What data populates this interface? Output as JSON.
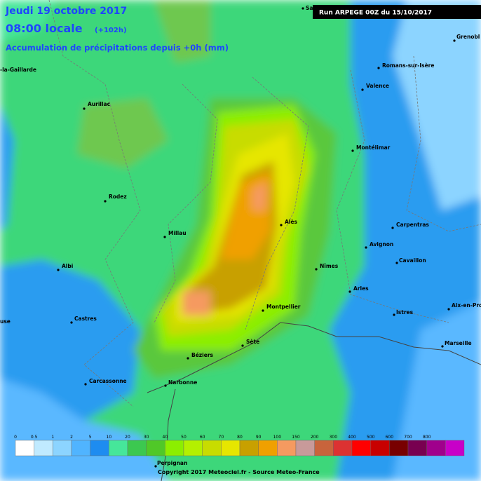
{
  "header": {
    "date": "Jeudi 19 octobre 2017",
    "time": "08:00 locale",
    "lead": "(+102h)",
    "subtitle": "Accumulation de précipitations depuis +0h (mm)",
    "run": "Run ARPEGE 00Z du 15/10/2017"
  },
  "cities": [
    "Sa",
    "Grenobl",
    "Romans-sur-Isère",
    "Valence",
    "-la-Gaillarde",
    "Aurillac",
    "Montélimar",
    "Rodez",
    "Carpentras",
    "Alès",
    "Millau",
    "Avignon",
    "Cavaillon",
    "Albi",
    "Nîmes",
    "Arles",
    "Montpellier",
    "Istres",
    "Aix-en-Pro",
    "Castres",
    "use",
    "Marseille",
    "Sète",
    "Béziers",
    "Carcassonne",
    "Narbonne",
    "Perpignan"
  ],
  "legend": {
    "labels": [
      0,
      0.5,
      1,
      2,
      5,
      10,
      20,
      30,
      40,
      50,
      60,
      70,
      80,
      90,
      100,
      150,
      200,
      300,
      400,
      500,
      600,
      700,
      800
    ],
    "colors": [
      "#ffffff",
      "#c0eaff",
      "#8cd4ff",
      "#50b4ff",
      "#1e8cf0",
      "#46e69a",
      "#3cc850",
      "#50c828",
      "#8cee00",
      "#b4f000",
      "#c8dc00",
      "#e6e600",
      "#c8a000",
      "#f0a000",
      "#f59a60",
      "#c89a9a",
      "#c8643c",
      "#dc3232",
      "#ff0000",
      "#c80000",
      "#780000",
      "#780050",
      "#a0008c",
      "#c800c8"
    ]
  },
  "footer": {
    "copyright": "Copyright 2017 Meteociel.fr - Source Meteo-France"
  }
}
